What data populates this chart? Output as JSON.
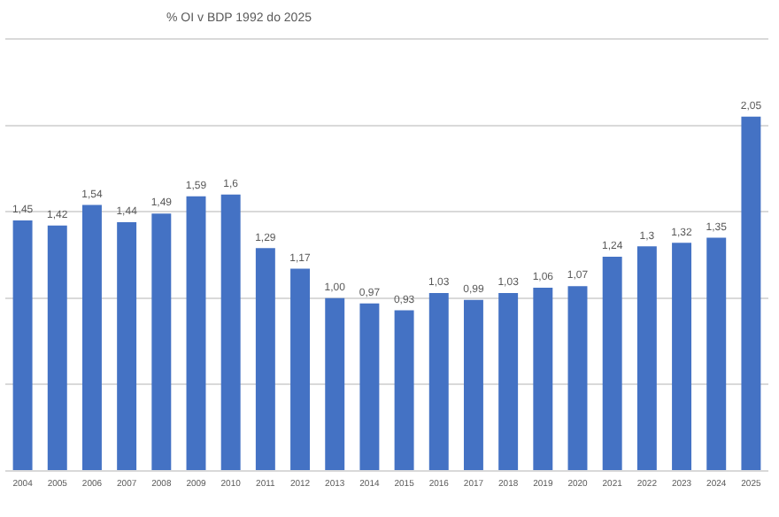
{
  "chart_data": {
    "type": "bar",
    "title": "% OI v BDP 1992 do 2025",
    "categories": [
      "2004",
      "2005",
      "2006",
      "2007",
      "2008",
      "2009",
      "2010",
      "2011",
      "2012",
      "2013",
      "2014",
      "2015",
      "2016",
      "2017",
      "2018",
      "2019",
      "2020",
      "2021",
      "2022",
      "2023",
      "2024",
      "2025"
    ],
    "values": [
      1.45,
      1.42,
      1.54,
      1.44,
      1.49,
      1.59,
      1.6,
      1.29,
      1.17,
      1.0,
      0.97,
      0.93,
      1.03,
      0.99,
      1.03,
      1.06,
      1.07,
      1.24,
      1.3,
      1.32,
      1.35,
      2.05
    ],
    "value_labels": [
      "1,45",
      "1,42",
      "1,54",
      "1,44",
      "1,49",
      "1,59",
      "1,6",
      "1,29",
      "1,17",
      "1,00",
      "0,97",
      "0,93",
      "1,03",
      "0,99",
      "1,03",
      "1,06",
      "1,07",
      "1,24",
      "1,3",
      "1,32",
      "1,35",
      "2,05"
    ],
    "color": "#4472c4",
    "ylim": [
      0,
      2.5
    ],
    "yticks": [
      {
        "value": 0,
        "label": null
      },
      {
        "value": 0.5,
        "label": null
      },
      {
        "value": 1,
        "label": null
      },
      {
        "value": 1.5,
        "label": null
      },
      {
        "value": 2,
        "label": null
      },
      {
        "value": 2.5,
        "label": null
      }
    ],
    "grid": "y",
    "tick_labels": "x"
  }
}
